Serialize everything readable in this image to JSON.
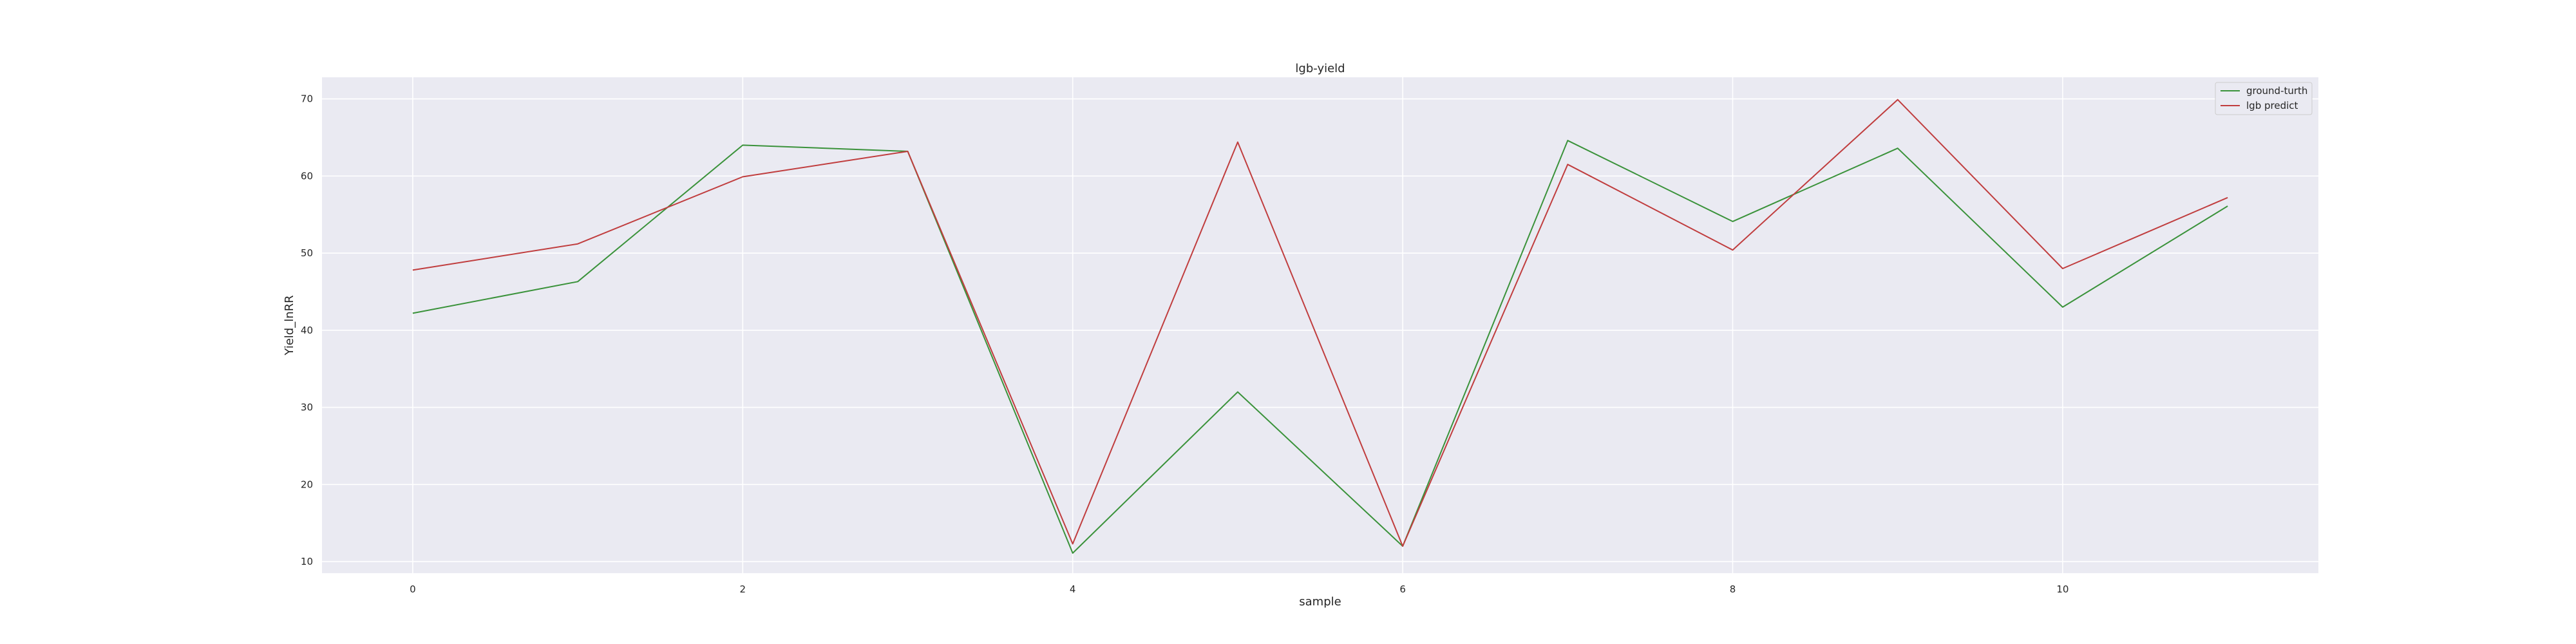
{
  "chart_data": {
    "type": "line",
    "title": "lgb-yield",
    "xlabel": "sample",
    "ylabel": "Yield_lnRR",
    "x": [
      0,
      1,
      2,
      3,
      4,
      5,
      6,
      7,
      8,
      9,
      10,
      11
    ],
    "xlim": [
      -0.55,
      11.55
    ],
    "ylim": [
      8.5,
      72.8
    ],
    "xticks": [
      0,
      2,
      4,
      6,
      8,
      10
    ],
    "yticks": [
      10,
      20,
      30,
      40,
      50,
      60,
      70
    ],
    "grid": true,
    "legend_position": "top-right",
    "series": [
      {
        "name": "ground-turth",
        "color": "#3a923a",
        "values": [
          42.2,
          46.3,
          64.0,
          63.2,
          11.1,
          32.0,
          12.0,
          64.6,
          54.1,
          63.6,
          43.0,
          56.1
        ]
      },
      {
        "name": "lgb predict",
        "color": "#c03d3e",
        "values": [
          47.8,
          51.2,
          59.9,
          63.2,
          12.3,
          64.4,
          12.0,
          61.5,
          50.4,
          69.9,
          48.0,
          57.2
        ]
      }
    ]
  }
}
